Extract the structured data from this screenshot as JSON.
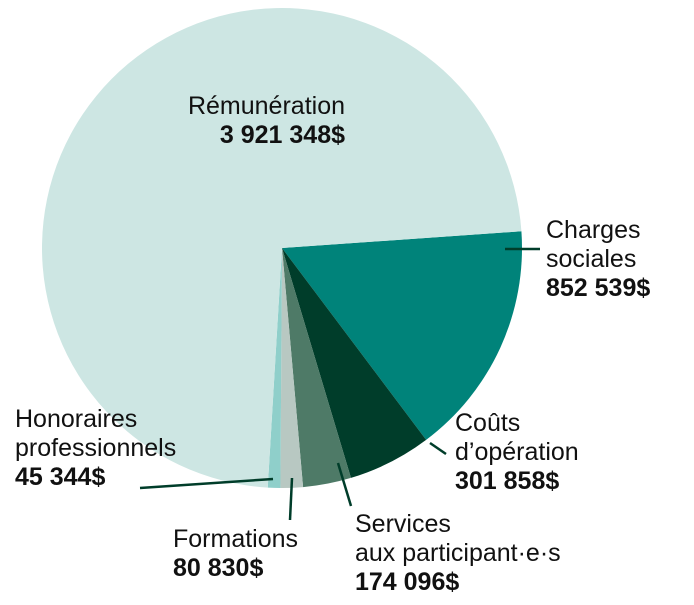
{
  "chart_data": {
    "type": "pie",
    "categories": [
      "Rémunération",
      "Charges\nsociales",
      "Coûts\nd’opération",
      "Services\naux participant·e·s",
      "Formations",
      "Honoraires\nprofessionnels"
    ],
    "values": [
      3921348,
      852539,
      301858,
      174096,
      80830,
      45344
    ],
    "value_labels": [
      "3 921 348$",
      "852 539$",
      "301 858$",
      "174 096$",
      "80 830$",
      "45 344$"
    ],
    "colors": [
      "#cde6e3",
      "#00837a",
      "#003d2a",
      "#4e7a67",
      "#b8c8c2",
      "#8fcfca"
    ]
  }
}
